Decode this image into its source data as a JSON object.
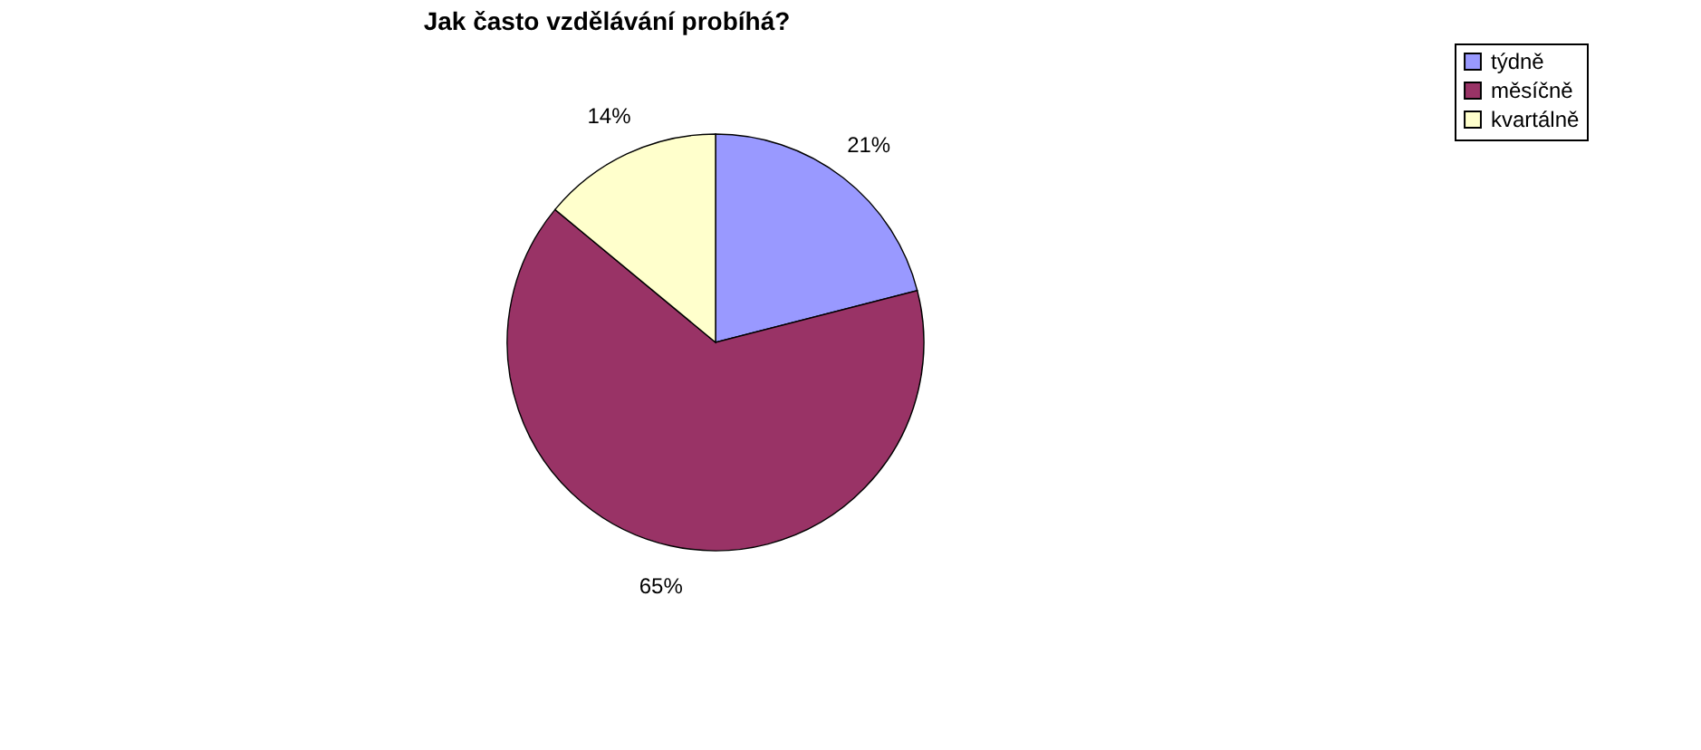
{
  "chart_data": {
    "type": "pie",
    "title": "Jak často vzdělávání probíhá?",
    "categories": [
      "týdně",
      "měsíčně",
      "kvartálně"
    ],
    "values": [
      21,
      65,
      14
    ],
    "colors": [
      "#9999ff",
      "#993366",
      "#ffffcc"
    ],
    "value_labels": [
      "21%",
      "65%",
      "14%"
    ],
    "legend": "right"
  }
}
